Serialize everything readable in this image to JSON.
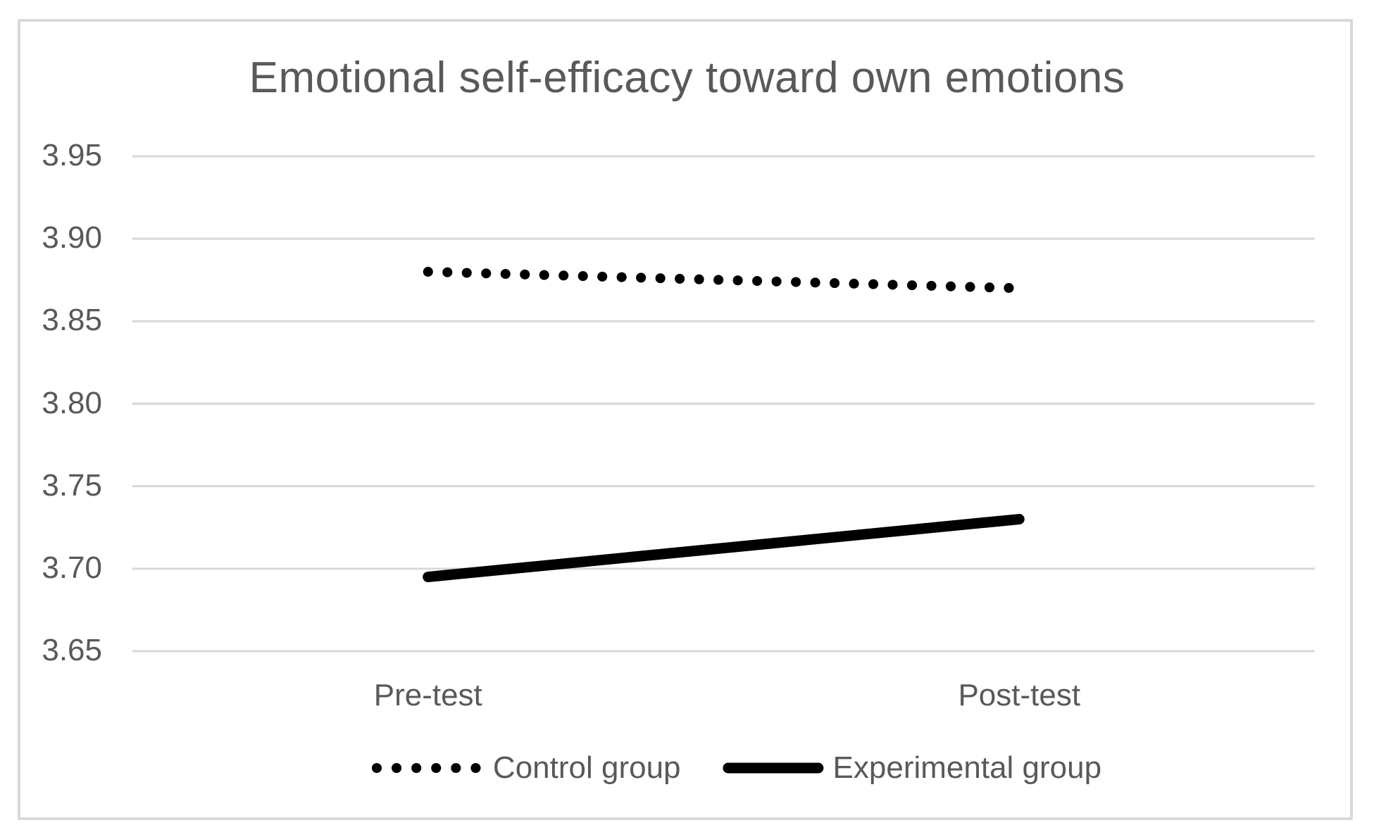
{
  "chart_data": {
    "type": "line",
    "title": "Emotional self-efficacy toward own emotions",
    "categories": [
      "Pre-test",
      "Post-test"
    ],
    "series": [
      {
        "name": "Control group",
        "style": "dotted",
        "color": "#000000",
        "values": [
          3.88,
          3.87
        ]
      },
      {
        "name": "Experimental group",
        "style": "solid",
        "color": "#000000",
        "values": [
          3.695,
          3.73
        ]
      }
    ],
    "y_ticks": [
      3.95,
      3.9,
      3.85,
      3.8,
      3.75,
      3.7,
      3.65
    ],
    "y_tick_labels": [
      "3.95",
      "3.90",
      "3.85",
      "3.80",
      "3.75",
      "3.70",
      "3.65"
    ],
    "ylim": [
      3.65,
      3.95
    ],
    "xlabel": "",
    "ylabel": "",
    "grid": "horizontal",
    "legend_position": "bottom-center",
    "colors": {
      "title_text": "#595959",
      "axis_text": "#595959",
      "legend_text": "#595959",
      "gridline": "#d9d9d9",
      "frame_border": "#d9d9d9",
      "series_line": "#000000",
      "background": "#ffffff"
    }
  }
}
